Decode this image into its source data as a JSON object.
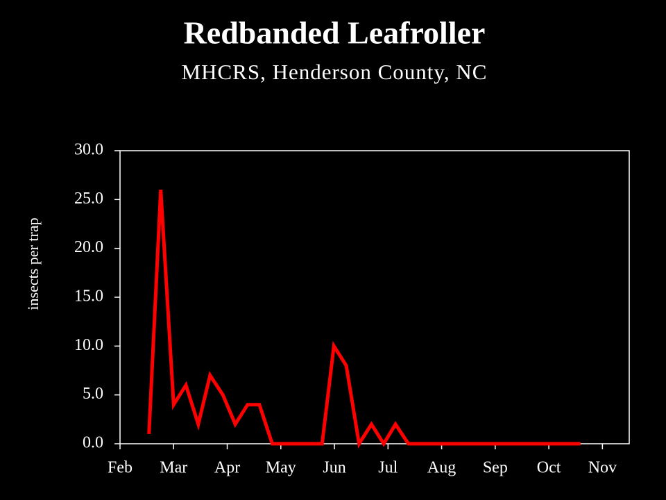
{
  "chart_data": {
    "type": "line",
    "title": "Redbanded Leafroller",
    "subtitle": "MHCRS, Henderson County, NC",
    "y_label": "insects per trap",
    "color": "#ff0000",
    "x": [
      0.54,
      0.76,
      1.0,
      1.23,
      1.46,
      1.68,
      1.92,
      2.15,
      2.38,
      2.6,
      2.84,
      3.07,
      3.3,
      3.54,
      3.77,
      3.99,
      4.22,
      4.46,
      4.69,
      4.92,
      5.14,
      5.38,
      5.61,
      5.84,
      6.07,
      6.3,
      6.53,
      6.76,
      6.99,
      7.22,
      7.44,
      7.67,
      7.9,
      8.13,
      8.36,
      8.59
    ],
    "values": [
      1,
      26,
      4,
      6,
      2,
      7,
      5,
      2,
      4,
      4,
      0,
      0,
      0,
      0,
      0,
      10,
      8,
      0,
      2,
      0,
      2,
      0,
      0,
      0,
      0,
      0,
      0,
      0,
      0,
      0,
      0,
      0,
      0,
      0,
      0,
      0
    ],
    "xlim": [
      0,
      9.5
    ],
    "xticks": [
      {
        "value": 0,
        "label": "Feb"
      },
      {
        "value": 1,
        "label": "Mar"
      },
      {
        "value": 2,
        "label": "Apr"
      },
      {
        "value": 3,
        "label": "May"
      },
      {
        "value": 4,
        "label": "Jun"
      },
      {
        "value": 5,
        "label": "Jul"
      },
      {
        "value": 6,
        "label": "Aug"
      },
      {
        "value": 7,
        "label": "Sep"
      },
      {
        "value": 8,
        "label": "Oct"
      },
      {
        "value": 9,
        "label": "Nov"
      }
    ],
    "ylim": [
      0,
      30
    ],
    "yticks": [
      {
        "value": 0,
        "label": "0.0"
      },
      {
        "value": 5,
        "label": "5.0"
      },
      {
        "value": 10,
        "label": "10.0"
      },
      {
        "value": 15,
        "label": "15.0"
      },
      {
        "value": 20,
        "label": "20.0"
      },
      {
        "value": 25,
        "label": "25.0"
      },
      {
        "value": 30,
        "label": "30.0"
      }
    ]
  }
}
